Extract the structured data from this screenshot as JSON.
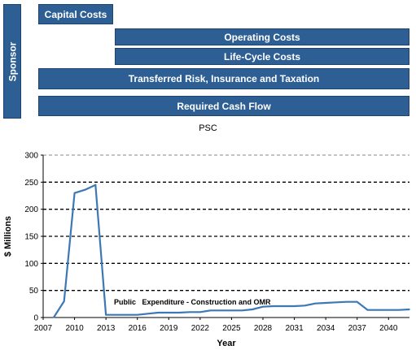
{
  "diagram": {
    "sponsor_label": "Sponsor",
    "capital_costs": "Capital Costs",
    "operating_costs": "Operating Costs",
    "life_cycle_costs": "Life-Cycle Costs",
    "transferred_risk": "Transferred Risk, Insurance and Taxation",
    "required_cash_flow": "Required Cash Flow",
    "bar_color": "#2e5f94"
  },
  "chart_data": {
    "type": "line",
    "title": "PSC",
    "xlabel": "Year",
    "ylabel": "$ Millions",
    "xlim": [
      2007,
      2042
    ],
    "ylim": [
      0,
      300
    ],
    "x_ticks": [
      2007,
      2010,
      2013,
      2016,
      2019,
      2022,
      2025,
      2028,
      2031,
      2034,
      2037,
      2040
    ],
    "y_ticks": [
      0,
      50,
      100,
      150,
      200,
      250,
      300
    ],
    "grid": "horizontal dashed",
    "line_color": "#3b78b5",
    "series": [
      {
        "name": "Public Expenditure - Construction and OMR",
        "x": [
          2008,
          2009,
          2010,
          2011,
          2012,
          2013,
          2014,
          2015,
          2016,
          2017,
          2018,
          2019,
          2020,
          2021,
          2022,
          2023,
          2024,
          2025,
          2026,
          2027,
          2028,
          2029,
          2030,
          2031,
          2032,
          2033,
          2034,
          2035,
          2036,
          2037,
          2038,
          2039,
          2040,
          2041,
          2042
        ],
        "values": [
          0,
          30,
          230,
          236,
          245,
          5,
          5,
          5,
          5,
          7,
          9,
          9,
          9,
          10,
          10,
          13,
          13,
          13,
          13,
          15,
          20,
          21,
          21,
          21,
          22,
          26,
          27,
          28,
          29,
          29,
          14,
          14,
          14,
          14,
          15
        ]
      }
    ],
    "annotation": "Public   Expenditure - Construction and OMR"
  }
}
